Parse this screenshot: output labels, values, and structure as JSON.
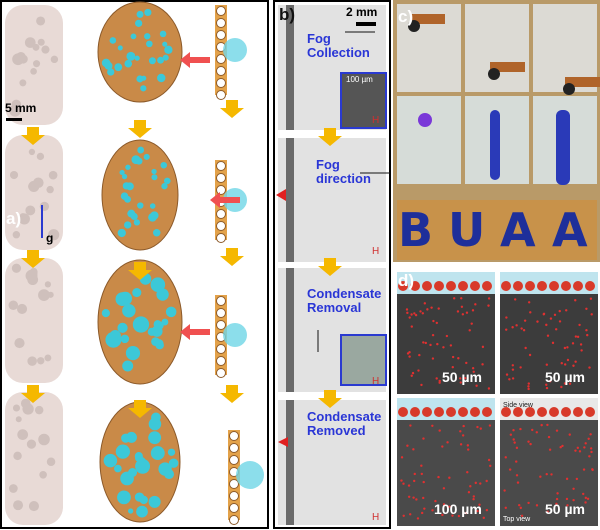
{
  "panel_a": {
    "label": "a)",
    "scale": "5 mm",
    "gravity": "g"
  },
  "panel_b": {
    "label": "b)",
    "scale": "2 mm",
    "steps": [
      {
        "text": "Fog Collection",
        "inset_scale": "100 µm",
        "axis": "H"
      },
      {
        "text": "Fog direction",
        "axis": "H"
      },
      {
        "text": "Condensate Removal",
        "axis": "H"
      },
      {
        "text": "Condensate Removed",
        "axis": "H"
      }
    ]
  },
  "panel_c": {
    "label": "c)",
    "letters": [
      "B",
      "U",
      "A",
      "A"
    ]
  },
  "panel_d": {
    "label": "d)",
    "scales": [
      "50 µm",
      "50 µm",
      "100 µm",
      "50 µm"
    ],
    "side_view": "Side view",
    "top_view": "Top view"
  }
}
